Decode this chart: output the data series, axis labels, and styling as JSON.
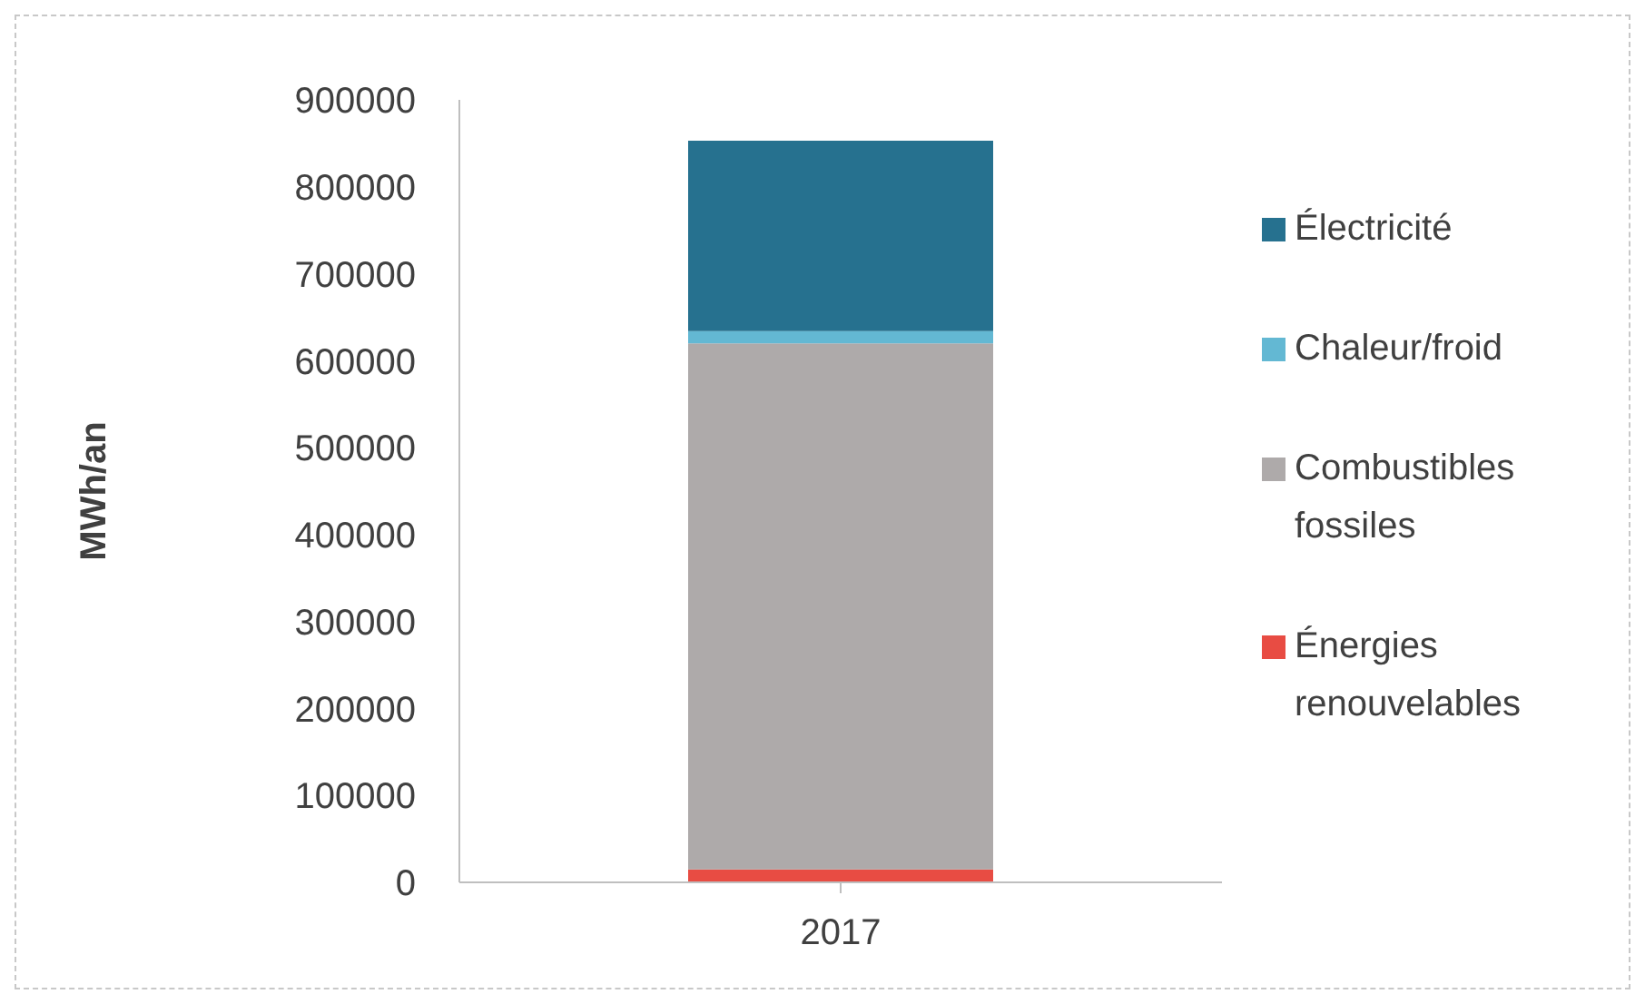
{
  "chart_data": {
    "type": "bar",
    "stacked": true,
    "ylabel": "MWh/an",
    "categories": [
      "2017"
    ],
    "series": [
      {
        "name": "Énergies renouvelables",
        "color": "#e84c43",
        "values": [
          15000
        ]
      },
      {
        "name": "Combustibles fossiles",
        "color": "#aeaaaa",
        "values": [
          605000
        ]
      },
      {
        "name": "Chaleur/froid",
        "color": "#63b8d3",
        "values": [
          14000
        ]
      },
      {
        "name": "Électricité",
        "color": "#26718f",
        "values": [
          219000
        ]
      }
    ],
    "ylim": [
      0,
      900000
    ],
    "yticks": [
      0,
      100000,
      200000,
      300000,
      400000,
      500000,
      600000,
      700000,
      800000,
      900000
    ],
    "grid": false,
    "legend": "right"
  }
}
